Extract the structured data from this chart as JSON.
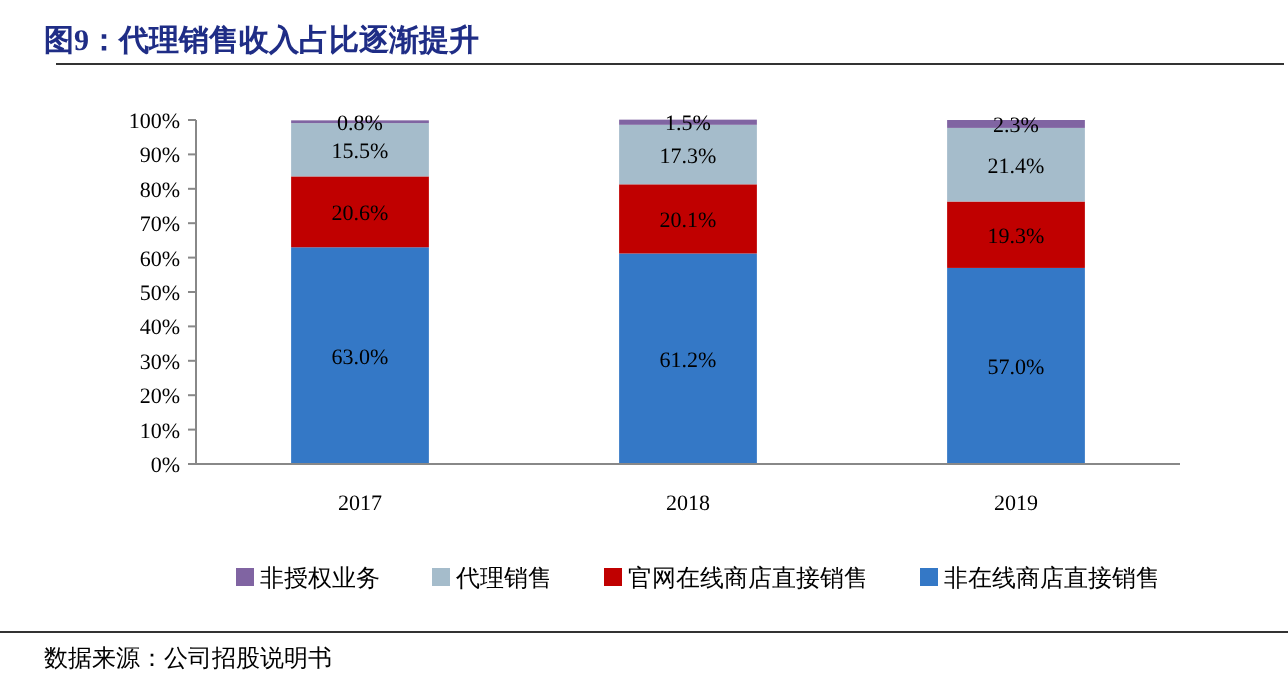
{
  "chart_data": {
    "type": "bar",
    "title": "图9：代理销售收入占比逐渐提升",
    "annotations": [
      "数据来源：公司招股说明书"
    ],
    "categories": [
      "2017",
      "2018",
      "2019"
    ],
    "stacked": true,
    "legend": "bottom",
    "grid": false,
    "ylim": [
      0,
      100
    ],
    "yticks": [
      {
        "value": 0,
        "label": "0%"
      },
      {
        "value": 10,
        "label": "10%"
      },
      {
        "value": 20,
        "label": "20%"
      },
      {
        "value": 30,
        "label": "30%"
      },
      {
        "value": 40,
        "label": "40%"
      },
      {
        "value": 50,
        "label": "50%"
      },
      {
        "value": 60,
        "label": "60%"
      },
      {
        "value": 70,
        "label": "70%"
      },
      {
        "value": 80,
        "label": "80%"
      },
      {
        "value": 90,
        "label": "90%"
      },
      {
        "value": 100,
        "label": "100%"
      }
    ],
    "series": [
      {
        "name": "非在线商店直接销售",
        "color": "#3478c6",
        "values": [
          63.0,
          61.2,
          57.0
        ],
        "value_labels": [
          "63.0%",
          "61.2%",
          "57.0%"
        ]
      },
      {
        "name": "官网在线商店直接销售",
        "color": "#c00000",
        "values": [
          20.6,
          20.1,
          19.3
        ],
        "value_labels": [
          "20.6%",
          "20.1%",
          "19.3%"
        ]
      },
      {
        "name": "代理销售",
        "color": "#a5bccb",
        "values": [
          15.5,
          17.3,
          21.4
        ],
        "value_labels": [
          "15.5%",
          "17.3%",
          "21.4%"
        ]
      },
      {
        "name": "非授权业务",
        "color": "#8064a2",
        "values": [
          0.8,
          1.5,
          2.3
        ],
        "value_labels": [
          "0.8%",
          "1.5%",
          "2.3%"
        ]
      }
    ]
  }
}
